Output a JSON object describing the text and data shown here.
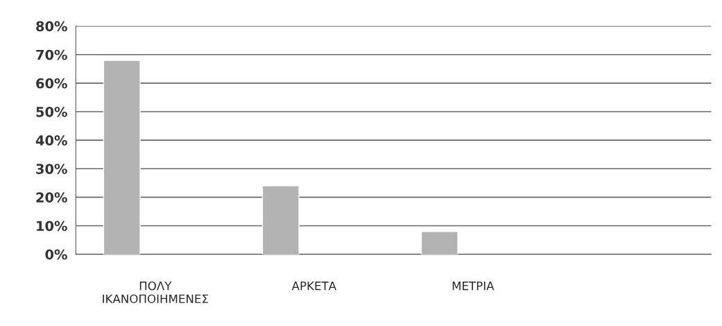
{
  "chart_data": {
    "type": "bar",
    "categories": [
      "ΠΟΛΥ\nΙΚΑΝΟΠΟΙΗΜΕΝΕΣ",
      "ΑΡΚΕΤΑ",
      "ΜΕΤΡΙΑ",
      null
    ],
    "values": [
      68,
      24,
      8,
      null
    ],
    "color": "#b3b3b3",
    "ylim": [
      0,
      80
    ],
    "yticks": [
      {
        "value": 0,
        "label": "0%"
      },
      {
        "value": 10,
        "label": "10%"
      },
      {
        "value": 20,
        "label": "20%"
      },
      {
        "value": 30,
        "label": "30%"
      },
      {
        "value": 40,
        "label": "40%"
      },
      {
        "value": 50,
        "label": "50%"
      },
      {
        "value": 60,
        "label": "60%"
      },
      {
        "value": 70,
        "label": "70%"
      },
      {
        "value": 80,
        "label": "80%"
      }
    ],
    "grid": "y",
    "legend": false
  }
}
